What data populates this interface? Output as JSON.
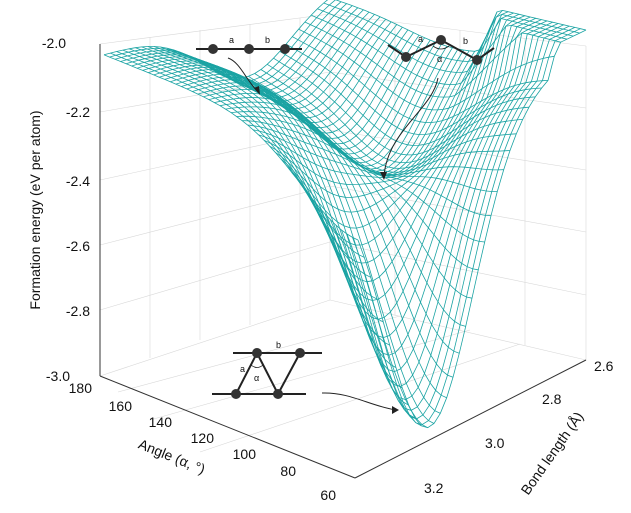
{
  "chart_data": {
    "type": "surface",
    "zlabel": "Formation energy (eV per atom)",
    "xlabel": "Angle (α, °)",
    "ylabel": "Bond length (Å)",
    "z_ticks": [
      "-2.0",
      "-2.2",
      "-2.4",
      "-2.6",
      "-2.8",
      "-3.0"
    ],
    "angle_ticks": [
      "180",
      "160",
      "140",
      "120",
      "100",
      "80",
      "60"
    ],
    "bond_ticks": [
      "2.6",
      "2.8",
      "3.0",
      "3.2"
    ],
    "zlim": [
      -3.0,
      -2.0
    ],
    "angle_range": [
      60,
      180
    ],
    "bond_range": [
      2.5,
      3.3
    ],
    "grid": "on",
    "surface_color": "#1aa3a3",
    "minima": [
      {
        "name": "flat",
        "angle": 180,
        "bond_length": 2.8,
        "energy": -2.22
      },
      {
        "name": "buckled",
        "angle": 120,
        "bond_length": 2.75,
        "energy": -2.4
      },
      {
        "name": "triangular",
        "angle": 60,
        "bond_length": 3.05,
        "energy": -2.97
      }
    ]
  },
  "insets": {
    "flat_a": "a",
    "flat_b": "b",
    "buckled_a": "a",
    "buckled_b": "b",
    "buckled_alpha": "α",
    "tri_a": "a",
    "tri_b": "b",
    "tri_alpha": "α"
  }
}
